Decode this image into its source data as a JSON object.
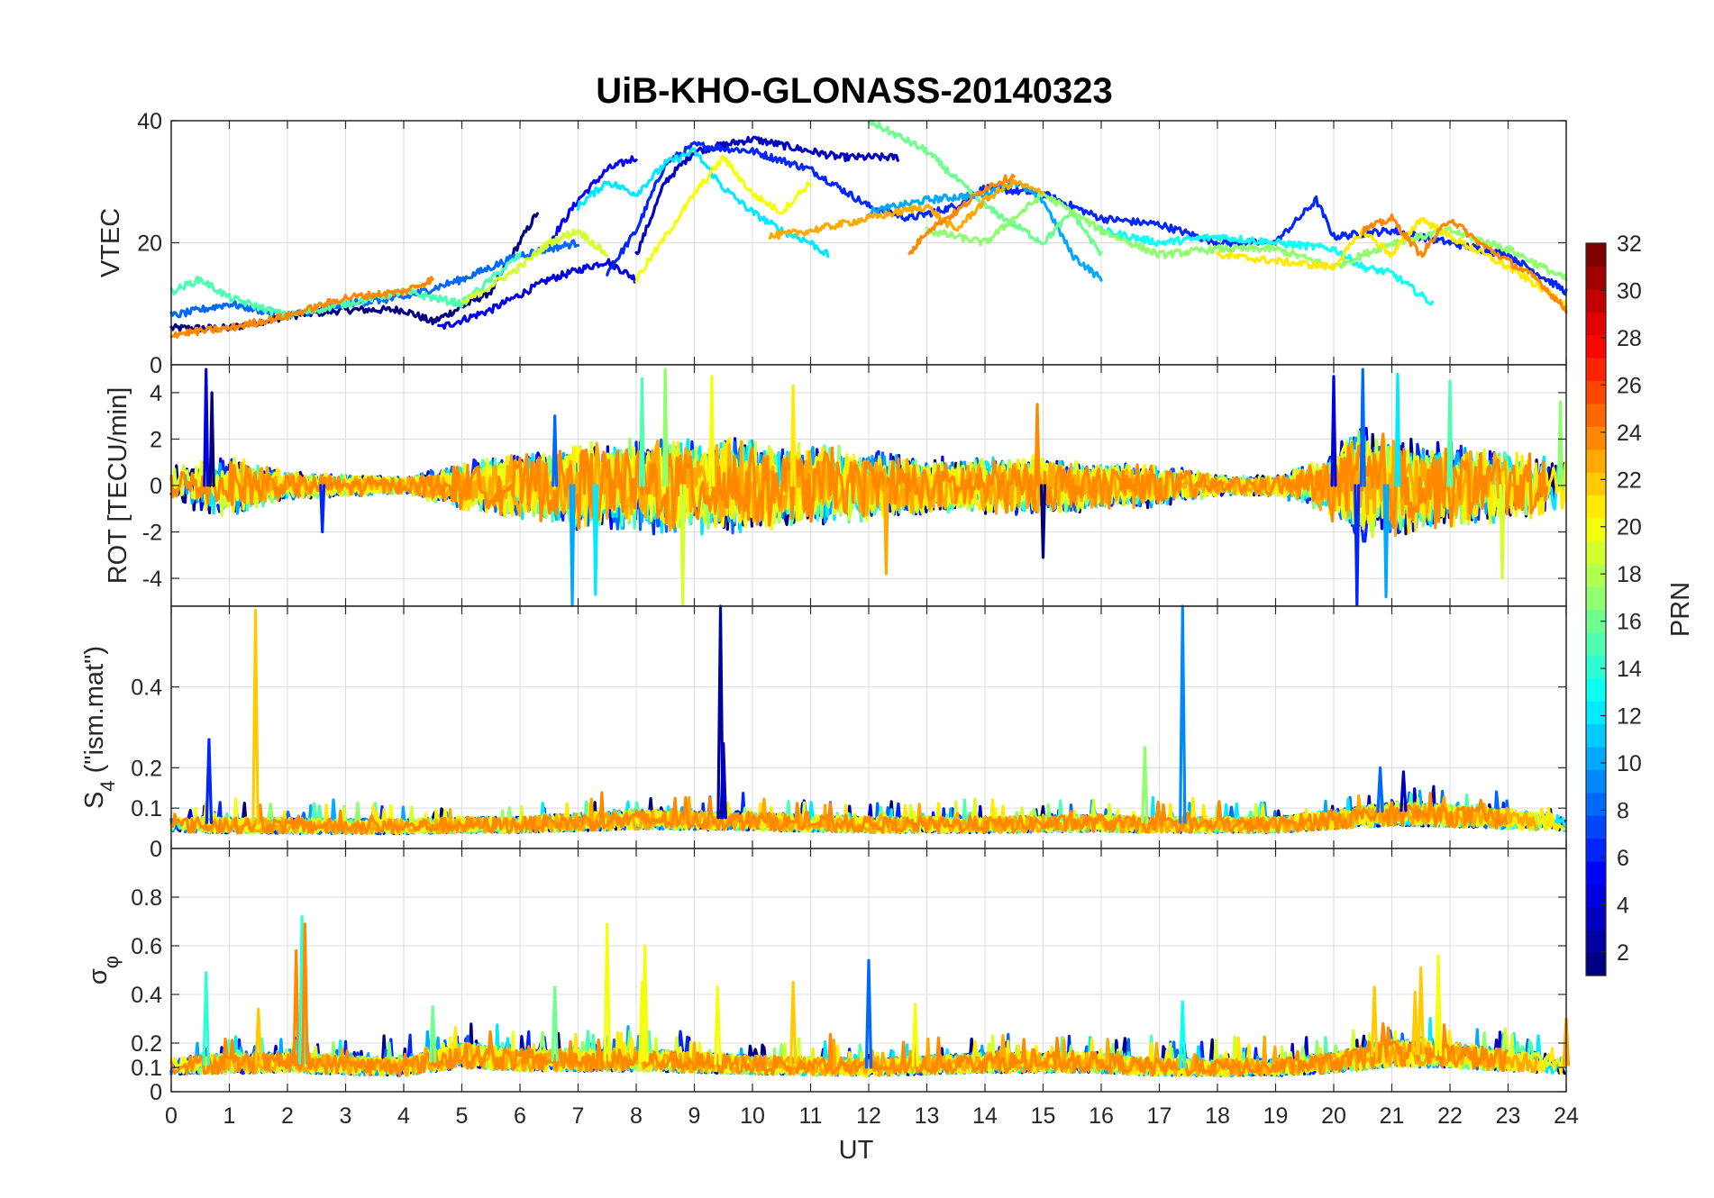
{
  "figure": {
    "title": "UiB-KHO-GLONASS-20140323",
    "xlabel": "UT"
  },
  "chart_data": [
    {
      "type": "line",
      "panel": "vtec",
      "ylabel": "VTEC",
      "xlim": [
        0,
        24
      ],
      "ylim": [
        0,
        40
      ],
      "x_ticks": [
        0,
        1,
        2,
        3,
        4,
        5,
        6,
        7,
        8,
        9,
        10,
        11,
        12,
        13,
        14,
        15,
        16,
        17,
        18,
        19,
        20,
        21,
        22,
        23,
        24
      ],
      "y_ticks": [
        0,
        20,
        40
      ],
      "grid": true,
      "series": [
        {
          "prn": 1,
          "x": [
            0.0,
            1.0,
            2.0,
            3.0,
            4.0,
            4.5,
            5.5,
            6.3
          ],
          "values": [
            6,
            6,
            8,
            9,
            9,
            7,
            12,
            25
          ]
        },
        {
          "prn": 4,
          "x": [
            4.6,
            5.5,
            6.5,
            7.5,
            8.0
          ],
          "values": [
            6,
            9,
            14,
            17,
            14
          ]
        },
        {
          "prn": 5,
          "x": [
            6.5,
            7.0,
            7.5,
            8.0
          ],
          "values": [
            20,
            27,
            32,
            34
          ]
        },
        {
          "prn": 3,
          "x": [
            8.0,
            8.5,
            9.0,
            9.5,
            10.0,
            10.5,
            11.0,
            11.5,
            12.0,
            12.5
          ],
          "values": [
            18,
            30,
            35,
            36,
            37,
            36,
            35,
            34,
            34,
            34
          ]
        },
        {
          "prn": 6,
          "x": [
            7.5,
            8.0,
            8.5,
            9.0,
            10.0,
            11.0,
            12.0,
            12.7,
            13.5,
            14.0,
            15.0,
            16.0,
            17.0,
            18.0,
            19.0,
            19.7,
            20.0,
            21.0,
            22.0,
            23.0,
            24.0
          ],
          "values": [
            15,
            22,
            33,
            36,
            35,
            32,
            26,
            24,
            26,
            29,
            28,
            24,
            23,
            20,
            20,
            27,
            21,
            22,
            20,
            18,
            12
          ]
        },
        {
          "prn": 8,
          "x": [
            0.0,
            1.0,
            2.0,
            3.0,
            4.0,
            5.0,
            6.0,
            7.0
          ],
          "values": [
            8,
            10,
            8,
            10,
            11,
            14,
            18,
            20
          ]
        },
        {
          "prn": 10,
          "x": [
            12.0,
            13.0,
            14.0,
            14.5,
            15.0,
            15.5,
            16.0
          ],
          "values": [
            25,
            27,
            28,
            30,
            27,
            18,
            14
          ]
        },
        {
          "prn": 12,
          "x": [
            7.0,
            7.5,
            8.0,
            8.5,
            9.0,
            9.5,
            10.0,
            10.5,
            11.0,
            11.3
          ],
          "values": [
            26,
            30,
            28,
            33,
            35,
            29,
            25,
            22,
            20,
            18
          ]
        },
        {
          "prn": 13,
          "x": [
            16.0,
            17.0,
            18.0,
            19.0,
            20.0,
            20.5,
            21.0,
            21.7
          ],
          "values": [
            22,
            20,
            21,
            20,
            19,
            16,
            15,
            10
          ]
        },
        {
          "prn": 15,
          "x": [
            0.0,
            0.5,
            1.0,
            2.0,
            3.0,
            4.0,
            5.0,
            6.0
          ],
          "values": [
            12,
            14,
            11,
            8,
            10,
            12,
            10,
            18
          ]
        },
        {
          "prn": 16,
          "x": [
            12.0,
            13.0,
            14.0,
            15.0,
            15.5,
            16.0
          ],
          "values": [
            40,
            35,
            26,
            20,
            25,
            18
          ]
        },
        {
          "prn": 17,
          "x": [
            13.0,
            14.0,
            15.0,
            16.0,
            17.0,
            18.0,
            19.0,
            20.0,
            21.0,
            22.0,
            23.0,
            24.0
          ],
          "values": [
            22,
            20,
            28,
            22,
            18,
            19,
            19,
            16,
            20,
            22,
            19,
            14
          ]
        },
        {
          "prn": 19,
          "x": [
            5.0,
            6.0,
            6.5,
            7.0,
            7.5
          ],
          "values": [
            10,
            16,
            20,
            22,
            18
          ]
        },
        {
          "prn": 20,
          "x": [
            8.0,
            8.5,
            9.0,
            9.5,
            10.0,
            10.5,
            11.0
          ],
          "values": [
            14,
            21,
            28,
            34,
            28,
            25,
            30
          ]
        },
        {
          "prn": 21,
          "x": [
            18.0,
            19.0,
            20.0,
            20.5,
            21.0,
            21.5,
            22.0,
            23.0,
            24.0
          ],
          "values": [
            18,
            17,
            16,
            22,
            18,
            24,
            21,
            16,
            10
          ]
        },
        {
          "prn": 23,
          "x": [
            10.3,
            11.0,
            12.0,
            13.0,
            13.5,
            14.0,
            14.5,
            15.0
          ],
          "values": [
            21,
            22,
            24,
            26,
            22,
            27,
            30,
            28
          ]
        },
        {
          "prn": 24,
          "x": [
            0.0,
            1.0,
            2.0,
            3.0,
            4.0,
            4.5
          ],
          "values": [
            5,
            6,
            8,
            11,
            12,
            14
          ]
        },
        {
          "prn": 24,
          "x": [
            12.7,
            13.0,
            13.5,
            14.0,
            14.5
          ],
          "values": [
            18,
            22,
            25,
            29,
            31
          ]
        },
        {
          "prn": 24,
          "x": [
            20.5,
            21.0,
            21.5,
            22.0,
            22.5,
            23.0,
            23.5,
            24.0
          ],
          "values": [
            22,
            24,
            18,
            24,
            20,
            17,
            14,
            9
          ]
        }
      ]
    },
    {
      "type": "line",
      "panel": "rot",
      "ylabel": "ROT [TECU/min]",
      "xlim": [
        0,
        24
      ],
      "ylim": [
        -5.2,
        5.2
      ],
      "y_ticks": [
        -4,
        -2,
        0,
        2,
        4
      ],
      "grid": true,
      "noise_envelope": {
        "x": [
          0,
          1,
          2,
          3,
          4,
          4.5,
          5,
          6,
          7,
          8,
          9,
          10,
          11,
          12,
          13,
          14,
          15,
          16,
          17,
          18,
          19,
          19.8,
          20.5,
          21,
          22,
          23,
          24
        ],
        "amplitude": [
          1.2,
          1.8,
          0.8,
          0.6,
          0.5,
          0.9,
          1.4,
          1.8,
          2.4,
          2.6,
          2.8,
          2.6,
          2.3,
          2.0,
          1.6,
          1.6,
          1.7,
          1.4,
          1.2,
          0.6,
          0.6,
          1.5,
          3.5,
          3.0,
          2.4,
          2.0,
          1.6
        ]
      },
      "spikes": [
        {
          "x": 0.7,
          "value": 4.0
        },
        {
          "x": 0.6,
          "value": 5.0
        },
        {
          "x": 2.6,
          "value": -2.0
        },
        {
          "x": 6.6,
          "value": 3.0
        },
        {
          "x": 6.9,
          "value": -5.2
        },
        {
          "x": 7.3,
          "value": -4.7
        },
        {
          "x": 8.1,
          "value": 4.6
        },
        {
          "x": 8.5,
          "value": 5.0
        },
        {
          "x": 8.8,
          "value": -5.2
        },
        {
          "x": 9.3,
          "value": 4.7
        },
        {
          "x": 10.7,
          "value": 4.3
        },
        {
          "x": 12.3,
          "value": -3.8
        },
        {
          "x": 14.9,
          "value": 3.5
        },
        {
          "x": 15.0,
          "value": -3.1
        },
        {
          "x": 20.0,
          "value": 4.7
        },
        {
          "x": 20.4,
          "value": -5.2
        },
        {
          "x": 20.5,
          "value": 5.0
        },
        {
          "x": 20.9,
          "value": -4.8
        },
        {
          "x": 21.1,
          "value": 4.8
        },
        {
          "x": 22.0,
          "value": 4.5
        },
        {
          "x": 23.9,
          "value": 3.6
        },
        {
          "x": 22.9,
          "value": -4.0
        }
      ]
    },
    {
      "type": "line",
      "panel": "s4",
      "ylabel": "S4 (\"ism.mat\")",
      "ylabel_parts": {
        "main": "S",
        "sub": "4",
        "rest": " (\"ism.mat\")"
      },
      "xlim": [
        0,
        24
      ],
      "ylim": [
        0,
        0.6
      ],
      "y_ticks": [
        0,
        0.1,
        0.2,
        0.4
      ],
      "y_ticklabels": [
        "0",
        "0.1",
        "0.2",
        "0.4"
      ],
      "grid": true,
      "baseline": {
        "x": [
          0,
          4,
          5,
          6,
          8,
          10,
          12,
          14,
          16,
          17,
          18,
          19,
          20,
          21,
          22,
          23,
          24
        ],
        "value": [
          0.065,
          0.06,
          0.065,
          0.065,
          0.08,
          0.075,
          0.065,
          0.065,
          0.07,
          0.065,
          0.065,
          0.065,
          0.08,
          0.095,
          0.09,
          0.08,
          0.07
        ]
      },
      "spikes": [
        {
          "x": 0.65,
          "value": 0.27
        },
        {
          "x": 1.45,
          "value": 0.59
        },
        {
          "x": 9.45,
          "value": 0.6
        },
        {
          "x": 9.5,
          "value": 0.26
        },
        {
          "x": 16.75,
          "value": 0.25
        },
        {
          "x": 17.4,
          "value": 0.6
        },
        {
          "x": 20.8,
          "value": 0.2
        },
        {
          "x": 21.2,
          "value": 0.19
        }
      ]
    },
    {
      "type": "line",
      "panel": "sigma_phi",
      "ylabel": "σφ",
      "ylabel_parts": {
        "main": "σ",
        "sub": "φ"
      },
      "xlim": [
        0,
        24
      ],
      "ylim": [
        0,
        1
      ],
      "y_ticks": [
        0,
        0.1,
        0.2,
        0.4,
        0.6,
        0.8
      ],
      "y_ticklabels": [
        "0",
        "0.1",
        "0.2",
        "0.4",
        "0.6",
        "0.8"
      ],
      "grid": true,
      "baseline": {
        "x": [
          0,
          2,
          4,
          5,
          6,
          8,
          10,
          12,
          14,
          16,
          17,
          18,
          19,
          20,
          21,
          22,
          23,
          24
        ],
        "value": [
          0.11,
          0.12,
          0.1,
          0.15,
          0.13,
          0.13,
          0.11,
          0.1,
          0.12,
          0.12,
          0.1,
          0.1,
          0.1,
          0.12,
          0.16,
          0.15,
          0.13,
          0.11
        ]
      },
      "spikes": [
        {
          "x": 0.6,
          "value": 0.49
        },
        {
          "x": 1.5,
          "value": 0.34
        },
        {
          "x": 2.15,
          "value": 0.58
        },
        {
          "x": 2.25,
          "value": 0.72
        },
        {
          "x": 2.3,
          "value": 0.69
        },
        {
          "x": 4.5,
          "value": 0.35
        },
        {
          "x": 6.6,
          "value": 0.43
        },
        {
          "x": 7.5,
          "value": 0.69
        },
        {
          "x": 8.15,
          "value": 0.6
        },
        {
          "x": 8.1,
          "value": 0.45
        },
        {
          "x": 9.4,
          "value": 0.43
        },
        {
          "x": 10.7,
          "value": 0.45
        },
        {
          "x": 12.0,
          "value": 0.54
        },
        {
          "x": 12.8,
          "value": 0.36
        },
        {
          "x": 17.4,
          "value": 0.37
        },
        {
          "x": 20.7,
          "value": 0.43
        },
        {
          "x": 21.5,
          "value": 0.51
        },
        {
          "x": 21.8,
          "value": 0.56
        },
        {
          "x": 21.4,
          "value": 0.41
        },
        {
          "x": 24.0,
          "value": 0.3
        }
      ]
    },
    {
      "type": "colorbar",
      "label": "PRN",
      "range": [
        1,
        32
      ],
      "colormap": "jet",
      "ticks": [
        2,
        4,
        6,
        8,
        10,
        12,
        14,
        16,
        18,
        20,
        22,
        24,
        26,
        28,
        30,
        32
      ]
    }
  ]
}
